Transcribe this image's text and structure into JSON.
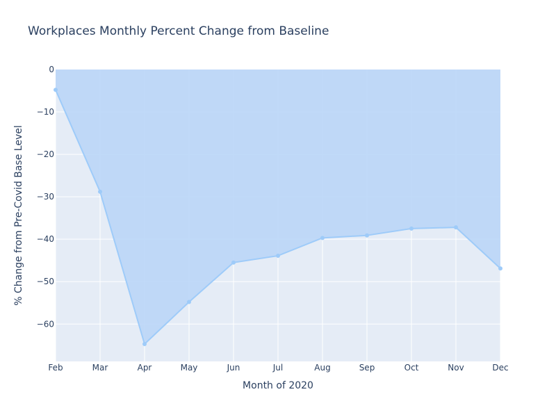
{
  "chart_data": {
    "type": "area",
    "title": "Workplaces Monthly Percent Change from Baseline",
    "xlabel": "Month of 2020",
    "ylabel": "% Change from Pre-Covid Base Level",
    "categories": [
      "Feb",
      "Mar",
      "Apr",
      "May",
      "Jun",
      "Jul",
      "Aug",
      "Sep",
      "Oct",
      "Nov",
      "Dec"
    ],
    "series": [
      {
        "values": [
          -4.8,
          -28.8,
          -64.7,
          -54.8,
          -45.5,
          -43.9,
          -39.7,
          -39.1,
          -37.5,
          -37.2,
          -46.9
        ]
      }
    ],
    "fill_to": "zero",
    "ylim": [
      -68.8,
      0
    ],
    "yticks": [
      0,
      -10,
      -20,
      -30,
      -40,
      -50,
      -60
    ],
    "ytick_labels": [
      "0",
      "−10",
      "−20",
      "−30",
      "−40",
      "−50",
      "−60"
    ],
    "grid": true,
    "legend": "none",
    "colors": {
      "plot_background": "#e5ecf6",
      "grid": "#ffffff",
      "line": "#9ecbf9",
      "fill": "#bad6f7",
      "text": "#2a3f5f"
    }
  }
}
